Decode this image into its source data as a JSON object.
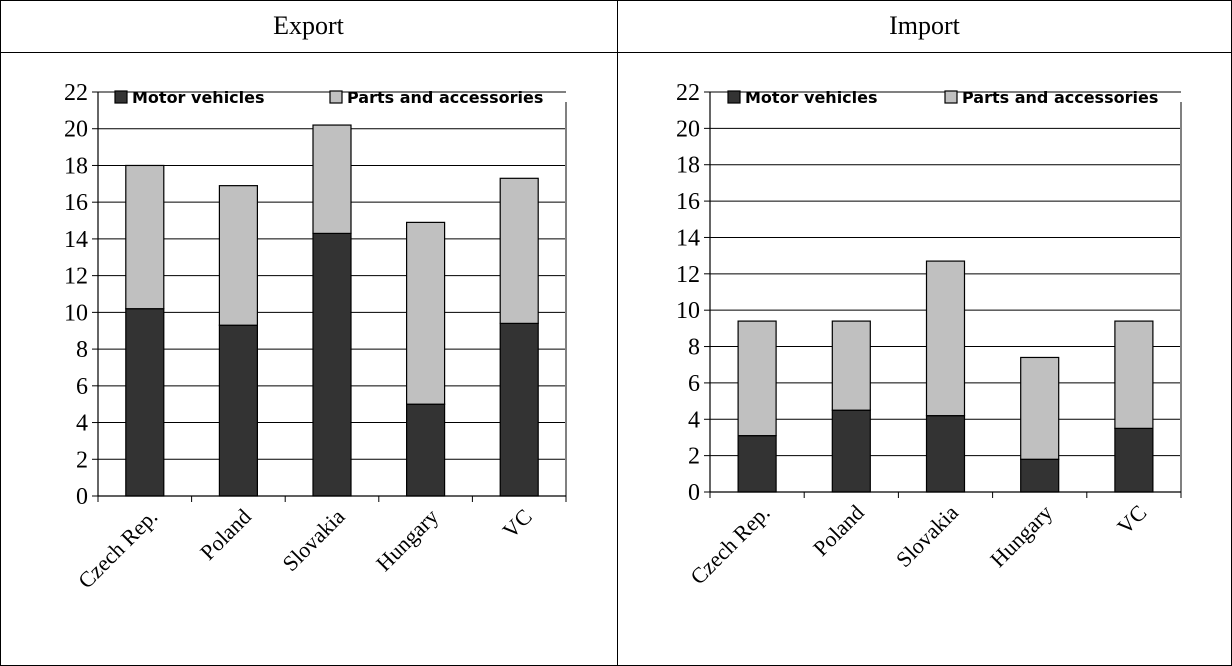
{
  "panels": [
    {
      "title": "Export"
    },
    {
      "title": "Import"
    }
  ],
  "colors": {
    "motor": "#333333",
    "parts": "#c0c0c0",
    "outline": "#000000"
  },
  "chart_data": [
    {
      "type": "bar",
      "stacked": true,
      "title": "Export",
      "categories": [
        "Czech Rep.",
        "Poland",
        "Slovakia",
        "Hungary",
        "VC"
      ],
      "series": [
        {
          "name": "Motor vehicles",
          "values": [
            10.2,
            9.3,
            14.3,
            5.0,
            9.4
          ]
        },
        {
          "name": "Parts and accessories",
          "values": [
            7.8,
            7.6,
            5.9,
            9.9,
            7.9
          ]
        }
      ],
      "xlabel": "",
      "ylabel": "",
      "ylim": [
        0,
        22
      ],
      "yticks": [
        "0",
        "2",
        "4",
        "6",
        "8",
        "10",
        "12",
        "14",
        "16",
        "18",
        "20",
        "22"
      ],
      "grid": true,
      "legend": "top"
    },
    {
      "type": "bar",
      "stacked": true,
      "title": "Import",
      "categories": [
        "Czech Rep.",
        "Poland",
        "Slovakia",
        "Hungary",
        "VC"
      ],
      "series": [
        {
          "name": "Motor vehicles",
          "values": [
            3.1,
            4.5,
            4.2,
            1.8,
            3.5
          ]
        },
        {
          "name": "Parts and accessories",
          "values": [
            6.3,
            4.9,
            8.5,
            5.6,
            5.9
          ]
        }
      ],
      "xlabel": "",
      "ylabel": "",
      "ylim": [
        0,
        22
      ],
      "yticks": [
        "0",
        "2",
        "4",
        "6",
        "8",
        "10",
        "12",
        "14",
        "16",
        "18",
        "20",
        "22"
      ],
      "grid": true,
      "legend": "top"
    }
  ]
}
